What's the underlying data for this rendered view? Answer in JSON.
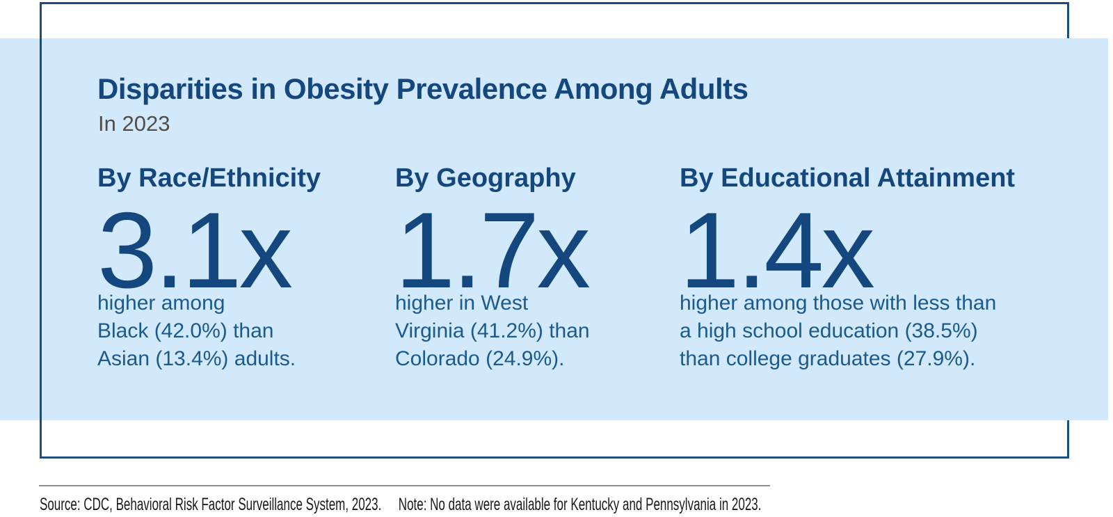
{
  "infographic": {
    "title": "Disparities in Obesity Prevalence Among Adults",
    "subtitle": "In 2023",
    "stats": [
      {
        "category": "By Race/Ethnicity",
        "multiplier": "3.1x",
        "lines": [
          "higher among",
          "Black (42.0%) than",
          "Asian (13.4%) adults."
        ]
      },
      {
        "category": "By Geography",
        "multiplier": "1.7x",
        "lines": [
          "higher in West",
          "Virginia (41.2%) than",
          "Colorado (24.9%)."
        ]
      },
      {
        "category": "By Educational Attainment",
        "multiplier": "1.4x",
        "lines": [
          "higher among those with less than",
          "a high school education (38.5%)",
          "than college graduates (27.9%)."
        ]
      }
    ]
  },
  "footer": {
    "source": "Source: CDC, Behavioral Risk Factor Surveillance System, 2023.",
    "note": "Note: No data were available for Kentucky and Pennsylvania in 2023."
  },
  "colors": {
    "accent_navy": "#14477d",
    "body_blue": "#1a5a8c",
    "panel_blue": "#d2e9fb",
    "frame_navy": "#1a4e7e",
    "subtitle_gray": "#504e4b",
    "divider_gray": "#8d8d8d",
    "footer_black": "#191917"
  },
  "chart_data": {
    "type": "table",
    "title": "Disparities in Obesity Prevalence Among Adults",
    "subtitle": "In 2023",
    "columns": [
      "dimension",
      "ratio",
      "higher_group",
      "higher_value_pct",
      "lower_group",
      "lower_value_pct"
    ],
    "rows": [
      {
        "dimension": "Race/Ethnicity",
        "ratio": 3.1,
        "higher_group": "Black adults",
        "higher_value_pct": 42.0,
        "lower_group": "Asian adults",
        "lower_value_pct": 13.4
      },
      {
        "dimension": "Geography",
        "ratio": 1.7,
        "higher_group": "West Virginia",
        "higher_value_pct": 41.2,
        "lower_group": "Colorado",
        "lower_value_pct": 24.9
      },
      {
        "dimension": "Educational Attainment",
        "ratio": 1.4,
        "higher_group": "Less than high school education",
        "higher_value_pct": 38.5,
        "lower_group": "College graduates",
        "lower_value_pct": 27.9
      }
    ],
    "source": "CDC, Behavioral Risk Factor Surveillance System, 2023",
    "note": "No data were available for Kentucky and Pennsylvania in 2023"
  }
}
